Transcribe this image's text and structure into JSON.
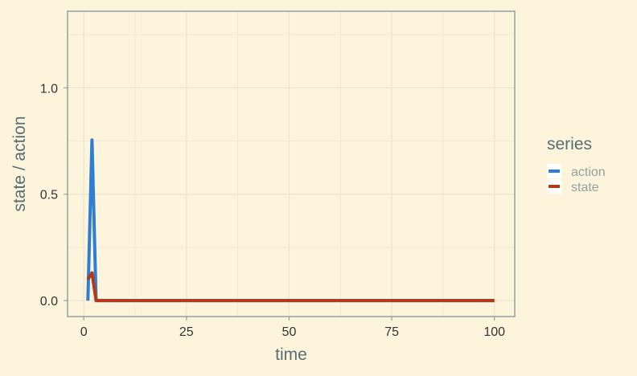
{
  "chart_data": {
    "type": "line",
    "xlabel": "time",
    "ylabel": "state / action",
    "xlim": [
      -3.95,
      104.95
    ],
    "ylim": [
      -0.075,
      1.36
    ],
    "x_ticks": [
      0,
      25,
      50,
      75,
      100
    ],
    "x_tick_labels": [
      "0",
      "25",
      "50",
      "75",
      "100"
    ],
    "y_ticks": [
      0.0,
      0.5,
      1.0
    ],
    "y_tick_labels": [
      "0.0",
      "0.5",
      "1.0"
    ],
    "grid": true,
    "legend": {
      "title": "series",
      "position": "right",
      "entries": [
        "action",
        "state"
      ]
    },
    "series": [
      {
        "name": "action",
        "color": "#2e7fd3",
        "points": [
          [
            1,
            0.0
          ],
          [
            2,
            0.755
          ],
          [
            3,
            0.0
          ],
          [
            4,
            0.0
          ],
          [
            100,
            0.0
          ]
        ]
      },
      {
        "name": "state",
        "color": "#b23a1c",
        "points": [
          [
            1,
            0.1
          ],
          [
            2,
            0.13
          ],
          [
            3,
            0.0
          ],
          [
            4,
            0.0
          ],
          [
            100,
            0.0
          ]
        ]
      }
    ]
  }
}
